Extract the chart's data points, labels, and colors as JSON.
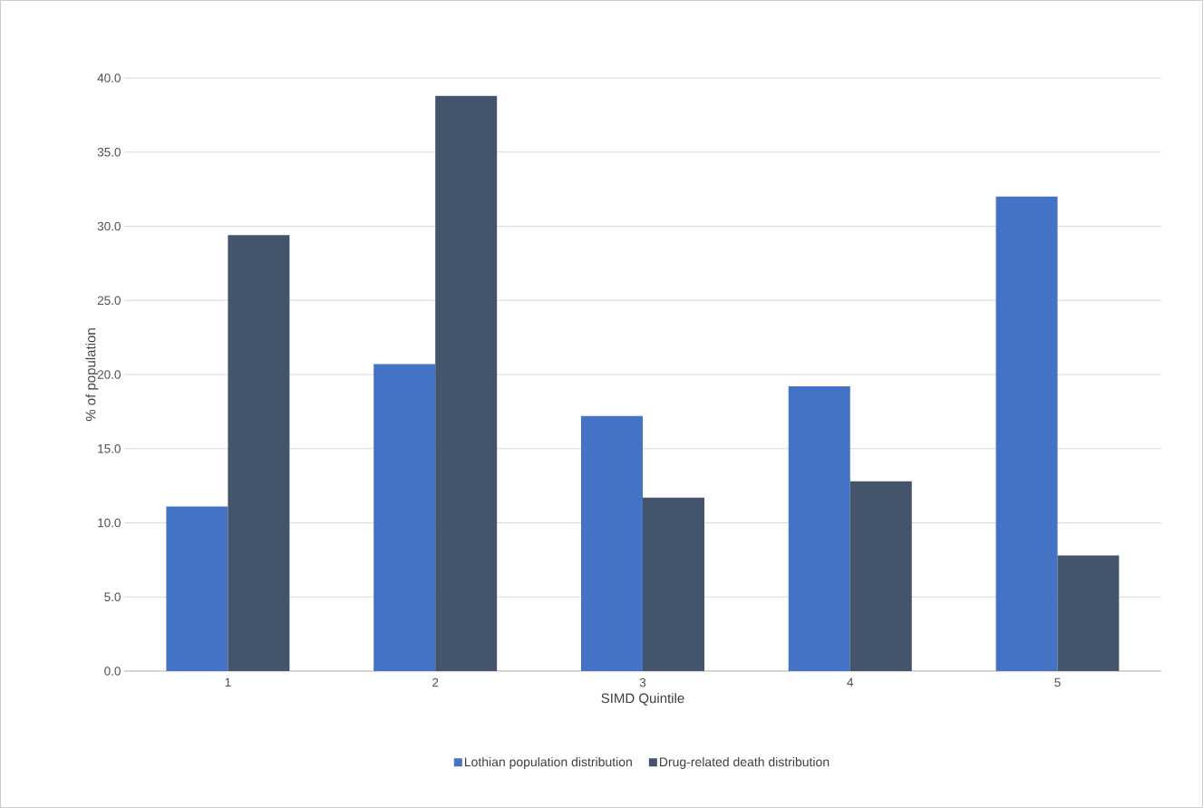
{
  "chart_data": {
    "type": "bar",
    "xlabel": "SIMD Quintile",
    "ylabel": "% of population",
    "categories": [
      "1",
      "2",
      "3",
      "4",
      "5"
    ],
    "series": [
      {
        "name": "Lothian population distribution",
        "color": "#4472c4",
        "values": [
          11.1,
          20.7,
          17.2,
          19.2,
          32.0
        ]
      },
      {
        "name": "Drug-related death distribution",
        "color": "#44546a",
        "values": [
          29.4,
          38.8,
          11.7,
          12.8,
          7.8
        ]
      }
    ],
    "ylim": [
      0,
      40
    ],
    "yticks": [
      {
        "value": 0,
        "label": "0.0"
      },
      {
        "value": 5,
        "label": "5.0"
      },
      {
        "value": 10,
        "label": "10.0"
      },
      {
        "value": 15,
        "label": "15.0"
      },
      {
        "value": 20,
        "label": "20.0"
      },
      {
        "value": 25,
        "label": "25.0"
      },
      {
        "value": 30,
        "label": "30.0"
      },
      {
        "value": 35,
        "label": "35.0"
      },
      {
        "value": 40,
        "label": "40.0"
      }
    ],
    "grid": "y",
    "legend": "bottom"
  }
}
